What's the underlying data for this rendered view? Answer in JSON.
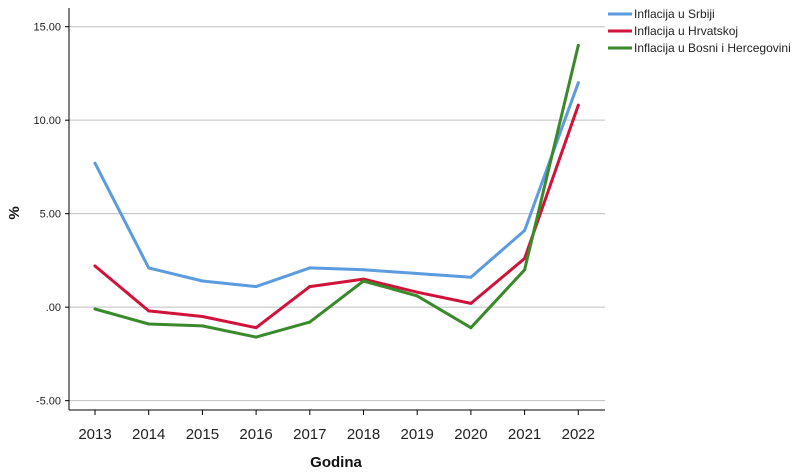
{
  "chart_data": {
    "type": "line",
    "xlabel": "Godina",
    "ylabel": "%",
    "x": [
      "2013",
      "2014",
      "2015",
      "2016",
      "2017",
      "2018",
      "2019",
      "2020",
      "2021",
      "2022"
    ],
    "ylim": [
      -5.5,
      16.0
    ],
    "y_ticks": [
      -5,
      0,
      5,
      10,
      15
    ],
    "y_tick_labels": [
      "-5.00",
      ".00",
      "5.00",
      "10.00",
      "15.00"
    ],
    "grid": "horizontal",
    "legend_position": "top-right",
    "series": [
      {
        "name": "Inflacija u Srbiji",
        "color": "#5b9bdf",
        "values": [
          7.7,
          2.1,
          1.4,
          1.1,
          2.1,
          2.0,
          1.8,
          1.6,
          4.1,
          12.0
        ]
      },
      {
        "name": "Inflacija u Hrvatskoj",
        "color": "#d1123b",
        "values": [
          2.2,
          -0.2,
          -0.5,
          -1.1,
          1.1,
          1.5,
          0.8,
          0.2,
          2.6,
          10.8
        ]
      },
      {
        "name": "Inflacija u Bosni i Hercegovini",
        "color": "#3a8a2c",
        "values": [
          -0.1,
          -0.9,
          -1.0,
          -1.6,
          -0.8,
          1.4,
          0.6,
          -1.1,
          2.0,
          14.0
        ]
      }
    ]
  }
}
